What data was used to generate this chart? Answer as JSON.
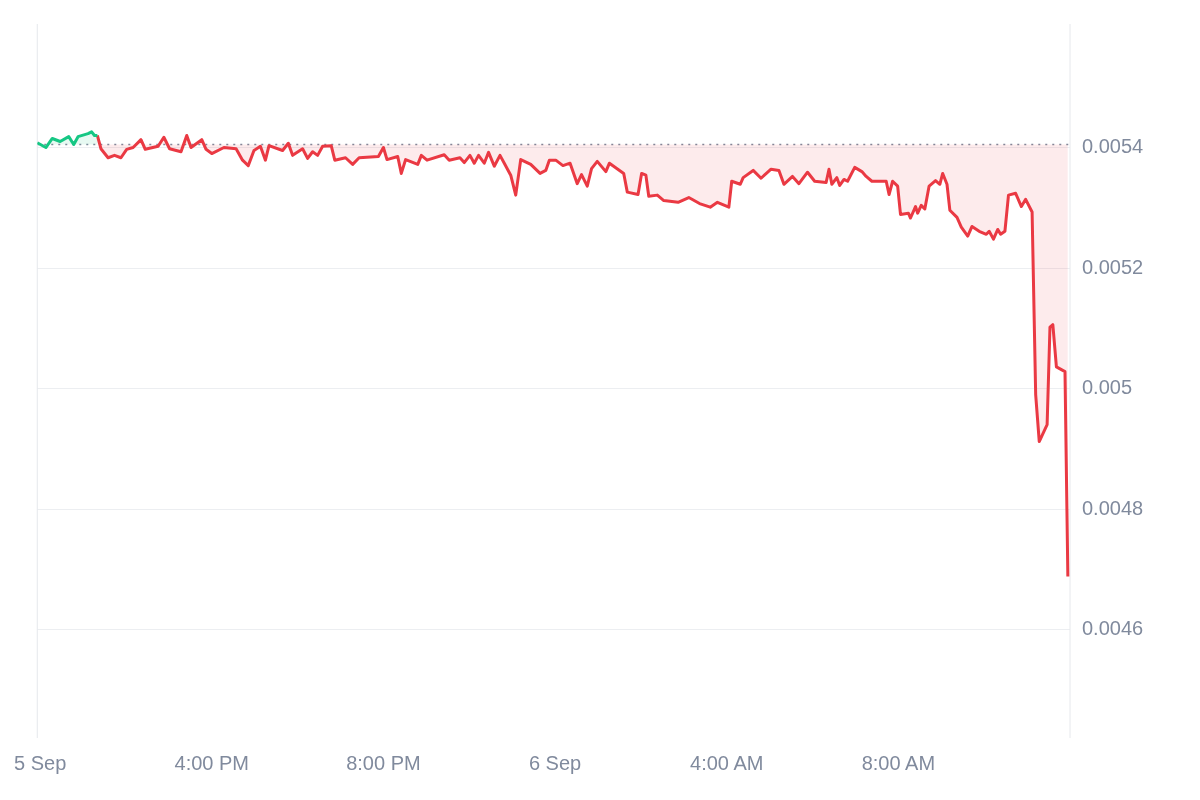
{
  "chart_data": {
    "type": "line",
    "xlim": [
      "--09-05T11:56",
      "--09-06T12:00"
    ],
    "xticks": [
      {
        "value": "--09-05T12:00",
        "label": "5 Sep"
      },
      {
        "value": "--09-05T16:00",
        "label": "4:00 PM"
      },
      {
        "value": "--09-05T20:00",
        "label": "8:00 PM"
      },
      {
        "value": "--09-06T00:00",
        "label": "6 Sep"
      },
      {
        "value": "--09-06T04:00",
        "label": "4:00 AM"
      },
      {
        "value": "--09-06T08:00",
        "label": "8:00 AM"
      }
    ],
    "ylim": [
      0.00442,
      0.005605
    ],
    "yticks": [
      0.0046,
      0.0048,
      0.005,
      0.0052,
      0.0054
    ],
    "grid": "y",
    "legend": false,
    "marker": "none",
    "ref_lines": [
      {
        "axis": "y",
        "value": 0.005405,
        "color": "#808a9d",
        "line_style": "dotted"
      }
    ],
    "series": [
      {
        "color": "#16c784",
        "x": [
          "--09-05T11:56",
          "--09-05T12:08",
          "--09-05T12:17",
          "--09-05T12:28",
          "--09-05T12:40",
          "--09-05T12:47",
          "--09-05T12:53",
          "--09-05T13:07",
          "--09-05T13:12",
          "--09-05T13:16",
          "--09-05T13:20"
        ],
        "values": [
          0.005408,
          0.0054,
          0.005415,
          0.00541,
          0.005418,
          0.005405,
          0.005418,
          0.005423,
          0.005426,
          0.00542,
          0.00542
        ]
      },
      {
        "color": "#ea3943",
        "x": [
          "--09-05T13:20",
          "--09-05T13:25",
          "--09-05T13:35",
          "--09-05T13:44",
          "--09-05T13:53",
          "--09-05T14:01",
          "--09-05T14:10",
          "--09-05T14:21",
          "--09-05T14:27",
          "--09-05T14:45",
          "--09-05T14:53",
          "--09-05T15:01",
          "--09-05T15:17",
          "--09-05T15:25",
          "--09-05T15:31",
          "--09-05T15:46",
          "--09-05T15:52",
          "--09-05T16:00",
          "--09-05T16:17",
          "--09-05T16:34",
          "--09-05T16:43",
          "--09-05T16:51",
          "--09-05T16:59",
          "--09-05T17:08",
          "--09-05T17:15",
          "--09-05T17:20",
          "--09-05T17:39",
          "--09-05T17:47",
          "--09-05T17:53",
          "--09-05T18:07",
          "--09-05T18:14",
          "--09-05T18:21",
          "--09-05T18:28",
          "--09-05T18:35",
          "--09-05T18:47",
          "--09-05T18:52",
          "--09-05T19:07",
          "--09-05T19:17",
          "--09-05T19:26",
          "--09-05T19:53",
          "--09-05T20:00",
          "--09-05T20:05",
          "--09-05T20:20",
          "--09-05T20:25",
          "--09-05T20:31",
          "--09-05T20:48",
          "--09-05T20:53",
          "--09-05T21:01",
          "--09-05T21:25",
          "--09-05T21:32",
          "--09-05T21:47",
          "--09-05T21:53",
          "--09-05T22:01",
          "--09-05T22:07",
          "--09-05T22:13",
          "--09-05T22:21",
          "--09-05T22:27",
          "--09-05T22:35",
          "--09-05T22:43",
          "--09-05T22:49",
          "--09-05T22:58",
          "--09-05T23:05",
          "--09-05T23:12",
          "--09-05T23:26",
          "--09-05T23:39",
          "--09-05T23:47",
          "--09-05T23:52",
          "--09-06T00:01",
          "--09-06T00:11",
          "--09-06T00:21",
          "--09-06T00:31",
          "--09-06T00:37",
          "--09-06T00:45",
          "--09-06T00:51",
          "--09-06T00:59",
          "--09-06T01:11",
          "--09-06T01:16",
          "--09-06T01:36",
          "--09-06T01:41",
          "--09-06T01:56",
          "--09-06T02:01",
          "--09-06T02:07",
          "--09-06T02:11",
          "--09-06T02:23",
          "--09-06T02:32",
          "--09-06T02:52",
          "--09-06T03:07",
          "--09-06T03:22",
          "--09-06T03:37",
          "--09-06T03:47",
          "--09-06T04:03",
          "--09-06T04:07",
          "--09-06T04:19",
          "--09-06T04:23",
          "--09-06T04:37",
          "--09-06T04:48",
          "--09-06T05:02",
          "--09-06T05:13",
          "--09-06T05:20",
          "--09-06T05:32",
          "--09-06T05:41",
          "--09-06T05:53",
          "--09-06T06:03",
          "--09-06T06:19",
          "--09-06T06:23",
          "--09-06T06:27",
          "--09-06T06:34",
          "--09-06T06:38",
          "--09-06T06:44",
          "--09-06T06:49",
          "--09-06T06:59",
          "--09-06T07:09",
          "--09-06T07:15",
          "--09-06T07:23",
          "--09-06T07:43",
          "--09-06T07:47",
          "--09-06T07:52",
          "--09-06T07:59",
          "--09-06T08:03",
          "--09-06T08:14",
          "--09-06T08:17",
          "--09-06T08:24",
          "--09-06T08:27",
          "--09-06T08:32",
          "--09-06T08:37",
          "--09-06T08:43",
          "--09-06T08:52",
          "--09-06T08:58",
          "--09-06T09:02",
          "--09-06T09:08",
          "--09-06T09:12",
          "--09-06T09:22",
          "--09-06T09:28",
          "--09-06T09:37",
          "--09-06T09:43",
          "--09-06T09:53",
          "--09-06T10:03",
          "--09-06T10:07",
          "--09-06T10:13",
          "--09-06T10:19",
          "--09-06T10:23",
          "--09-06T10:29",
          "--09-06T10:34",
          "--09-06T10:44",
          "--09-06T10:52",
          "--09-06T10:58",
          "--09-06T11:07",
          "--09-06T11:12",
          "--09-06T11:17",
          "--09-06T11:28",
          "--09-06T11:32",
          "--09-06T11:36",
          "--09-06T11:41",
          "--09-06T11:53",
          "--09-06T11:57"
        ],
        "values": [
          0.00542,
          0.005398,
          0.005383,
          0.005387,
          0.005383,
          0.005397,
          0.0054,
          0.005413,
          0.005397,
          0.005402,
          0.005417,
          0.005398,
          0.005393,
          0.00542,
          0.0054,
          0.005413,
          0.005397,
          0.00539,
          0.0054,
          0.005398,
          0.005379,
          0.00537,
          0.005395,
          0.005402,
          0.005379,
          0.005403,
          0.005395,
          0.005407,
          0.005387,
          0.005398,
          0.005382,
          0.005393,
          0.005387,
          0.005402,
          0.005403,
          0.005379,
          0.005383,
          0.005372,
          0.005383,
          0.005385,
          0.0054,
          0.00538,
          0.005385,
          0.005357,
          0.00538,
          0.005372,
          0.005387,
          0.005379,
          0.005388,
          0.005379,
          0.005383,
          0.005375,
          0.005387,
          0.005374,
          0.005387,
          0.005374,
          0.005392,
          0.005369,
          0.005387,
          0.005374,
          0.005354,
          0.005321,
          0.00538,
          0.005372,
          0.005357,
          0.005362,
          0.005379,
          0.005379,
          0.00537,
          0.005374,
          0.00534,
          0.005355,
          0.005336,
          0.005365,
          0.005377,
          0.00536,
          0.005374,
          0.005357,
          0.005326,
          0.005322,
          0.005357,
          0.005354,
          0.005319,
          0.005321,
          0.005312,
          0.005309,
          0.005317,
          0.005307,
          0.005301,
          0.005309,
          0.005301,
          0.005344,
          0.005339,
          0.00535,
          0.005362,
          0.005349,
          0.005364,
          0.005362,
          0.005339,
          0.005352,
          0.00534,
          0.005359,
          0.005344,
          0.005342,
          0.005364,
          0.005339,
          0.00535,
          0.005337,
          0.005347,
          0.005344,
          0.005367,
          0.00536,
          0.005352,
          0.005344,
          0.005344,
          0.005322,
          0.005344,
          0.005336,
          0.005289,
          0.005291,
          0.005283,
          0.005302,
          0.005291,
          0.005304,
          0.005298,
          0.005336,
          0.005345,
          0.005339,
          0.005357,
          0.005339,
          0.005296,
          0.005284,
          0.005268,
          0.005253,
          0.005269,
          0.005261,
          0.005256,
          0.005261,
          0.005248,
          0.005264,
          0.005256,
          0.005261,
          0.005321,
          0.005324,
          0.005302,
          0.005314,
          0.005293,
          0.00499,
          0.004912,
          0.00494,
          0.005102,
          0.005106,
          0.005036,
          0.005028,
          0.004688
        ]
      }
    ]
  }
}
